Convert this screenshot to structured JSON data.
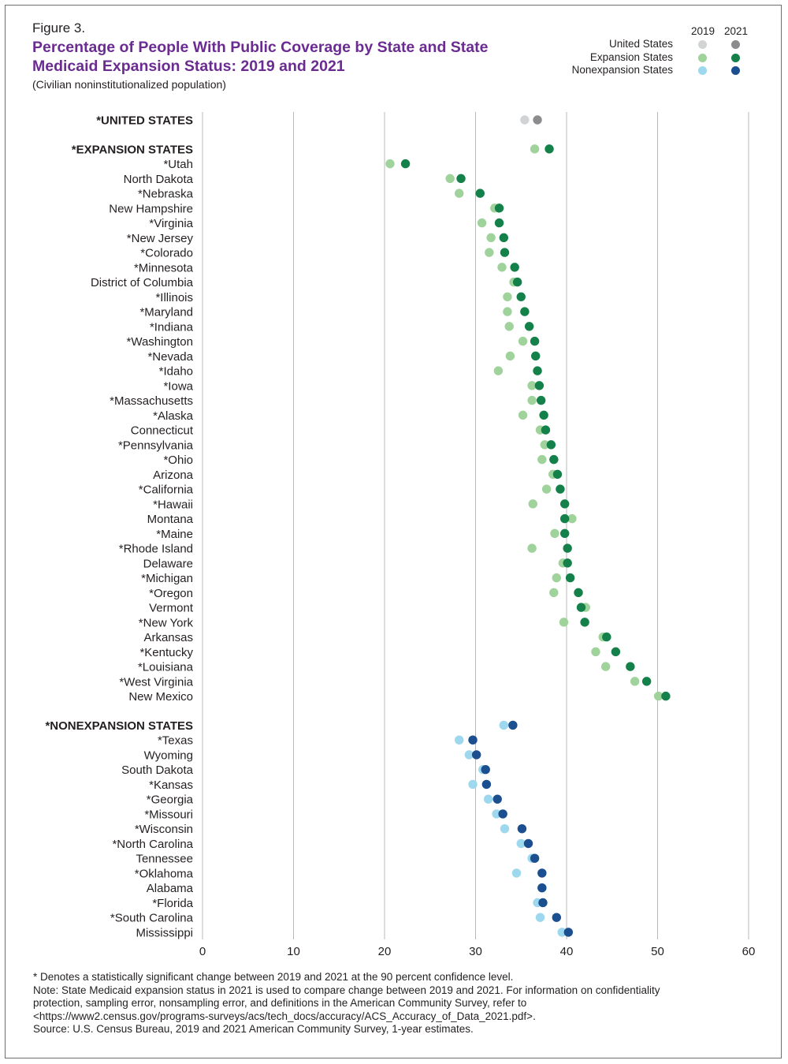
{
  "figure_label": "Figure 3.",
  "title": "Percentage of People With Public Coverage by State and State Medicaid Expansion Status: 2019 and 2021",
  "subtitle": "(Civilian noninstitutionalized population)",
  "legend": {
    "year_a": "2019",
    "year_b": "2021",
    "items": [
      {
        "label": "United States",
        "color_2019": "#d1d3d4",
        "color_2021": "#8c8c8e"
      },
      {
        "label": "Expansion States",
        "color_2019": "#9fd39b",
        "color_2021": "#14804a"
      },
      {
        "label": "Nonexpansion States",
        "color_2019": "#9dd8ee",
        "color_2021": "#1c4f8f"
      }
    ]
  },
  "footnotes": {
    "line1": "* Denotes a statistically significant change between 2019 and 2021 at the 90 percent confidence level.",
    "line2": "Note: State Medicaid expansion status in 2021 is used to compare change between 2019 and 2021. For information on confidentiality protection, sampling error, nonsampling error, and definitions in the American Community Survey, refer to <https://www2.census.gov/programs-surveys/acs/tech_docs/accuracy/ACS_Accuracy_of_Data_2021.pdf>.",
    "line3": "Source: U.S. Census Bureau, 2019 and 2021 American Community Survey, 1-year estimates."
  },
  "chart_data": {
    "type": "scatter",
    "xlim": [
      0,
      60
    ],
    "xticks": [
      0,
      10,
      20,
      30,
      40,
      50,
      60
    ],
    "grid": true,
    "legend_position": "top-right",
    "rows": [
      {
        "label": "*UNITED STATES",
        "group": "us",
        "heading": true,
        "v2019": 35.4,
        "v2021": 36.8
      },
      {
        "gap": true
      },
      {
        "label": "*EXPANSION STATES",
        "group": "exp",
        "heading": true,
        "v2019": 36.5,
        "v2021": 38.1
      },
      {
        "label": "*Utah",
        "group": "exp",
        "v2019": 20.6,
        "v2021": 22.3
      },
      {
        "label": "North Dakota",
        "group": "exp",
        "v2019": 27.2,
        "v2021": 28.4
      },
      {
        "label": "*Nebraska",
        "group": "exp",
        "v2019": 28.2,
        "v2021": 30.5
      },
      {
        "label": "New Hampshire",
        "group": "exp",
        "v2019": 32.1,
        "v2021": 32.6
      },
      {
        "label": "*Virginia",
        "group": "exp",
        "v2019": 30.7,
        "v2021": 32.6
      },
      {
        "label": "*New Jersey",
        "group": "exp",
        "v2019": 31.7,
        "v2021": 33.1
      },
      {
        "label": "*Colorado",
        "group": "exp",
        "v2019": 31.5,
        "v2021": 33.2
      },
      {
        "label": "*Minnesota",
        "group": "exp",
        "v2019": 32.9,
        "v2021": 34.3
      },
      {
        "label": "District of Columbia",
        "group": "exp",
        "v2019": 34.2,
        "v2021": 34.6
      },
      {
        "label": "*Illinois",
        "group": "exp",
        "v2019": 33.5,
        "v2021": 35.0
      },
      {
        "label": "*Maryland",
        "group": "exp",
        "v2019": 33.5,
        "v2021": 35.4
      },
      {
        "label": "*Indiana",
        "group": "exp",
        "v2019": 33.7,
        "v2021": 35.9
      },
      {
        "label": "*Washington",
        "group": "exp",
        "v2019": 35.2,
        "v2021": 36.5
      },
      {
        "label": "*Nevada",
        "group": "exp",
        "v2019": 33.8,
        "v2021": 36.6
      },
      {
        "label": "*Idaho",
        "group": "exp",
        "v2019": 32.5,
        "v2021": 36.8
      },
      {
        "label": "*Iowa",
        "group": "exp",
        "v2019": 36.2,
        "v2021": 37.0
      },
      {
        "label": "*Massachusetts",
        "group": "exp",
        "v2019": 36.2,
        "v2021": 37.2
      },
      {
        "label": "*Alaska",
        "group": "exp",
        "v2019": 35.2,
        "v2021": 37.5
      },
      {
        "label": "Connecticut",
        "group": "exp",
        "v2019": 37.1,
        "v2021": 37.7
      },
      {
        "label": "*Pennsylvania",
        "group": "exp",
        "v2019": 37.6,
        "v2021": 38.3
      },
      {
        "label": "*Ohio",
        "group": "exp",
        "v2019": 37.3,
        "v2021": 38.6
      },
      {
        "label": "Arizona",
        "group": "exp",
        "v2019": 38.5,
        "v2021": 39.0
      },
      {
        "label": "*California",
        "group": "exp",
        "v2019": 37.8,
        "v2021": 39.3
      },
      {
        "label": "*Hawaii",
        "group": "exp",
        "v2019": 36.3,
        "v2021": 39.8
      },
      {
        "label": "Montana",
        "group": "exp",
        "v2019": 40.6,
        "v2021": 39.8
      },
      {
        "label": "*Maine",
        "group": "exp",
        "v2019": 38.7,
        "v2021": 39.8
      },
      {
        "label": "*Rhode Island",
        "group": "exp",
        "v2019": 36.2,
        "v2021": 40.1
      },
      {
        "label": "Delaware",
        "group": "exp",
        "v2019": 39.6,
        "v2021": 40.1
      },
      {
        "label": "*Michigan",
        "group": "exp",
        "v2019": 38.9,
        "v2021": 40.4
      },
      {
        "label": "*Oregon",
        "group": "exp",
        "v2019": 38.6,
        "v2021": 41.3
      },
      {
        "label": "Vermont",
        "group": "exp",
        "v2019": 42.1,
        "v2021": 41.6
      },
      {
        "label": "*New York",
        "group": "exp",
        "v2019": 39.7,
        "v2021": 42.0
      },
      {
        "label": "Arkansas",
        "group": "exp",
        "v2019": 44.0,
        "v2021": 44.4
      },
      {
        "label": "*Kentucky",
        "group": "exp",
        "v2019": 43.2,
        "v2021": 45.4
      },
      {
        "label": "*Louisiana",
        "group": "exp",
        "v2019": 44.3,
        "v2021": 47.0
      },
      {
        "label": "*West Virginia",
        "group": "exp",
        "v2019": 47.5,
        "v2021": 48.8
      },
      {
        "label": "New Mexico",
        "group": "exp",
        "v2019": 50.1,
        "v2021": 50.9
      },
      {
        "gap": true
      },
      {
        "label": "*NONEXPANSION STATES",
        "group": "non",
        "heading": true,
        "v2019": 33.1,
        "v2021": 34.1
      },
      {
        "label": "*Texas",
        "group": "non",
        "v2019": 28.2,
        "v2021": 29.7
      },
      {
        "label": "Wyoming",
        "group": "non",
        "v2019": 29.3,
        "v2021": 30.1
      },
      {
        "label": "South Dakota",
        "group": "non",
        "v2019": 30.8,
        "v2021": 31.1
      },
      {
        "label": "*Kansas",
        "group": "non",
        "v2019": 29.7,
        "v2021": 31.2
      },
      {
        "label": "*Georgia",
        "group": "non",
        "v2019": 31.4,
        "v2021": 32.4
      },
      {
        "label": "*Missouri",
        "group": "non",
        "v2019": 32.3,
        "v2021": 33.0
      },
      {
        "label": "*Wisconsin",
        "group": "non",
        "v2019": 33.2,
        "v2021": 35.1
      },
      {
        "label": "*North Carolina",
        "group": "non",
        "v2019": 35.0,
        "v2021": 35.8
      },
      {
        "label": "Tennessee",
        "group": "non",
        "v2019": 36.2,
        "v2021": 36.5
      },
      {
        "label": "*Oklahoma",
        "group": "non",
        "v2019": 34.5,
        "v2021": 37.3
      },
      {
        "label": "Alabama",
        "group": "non",
        "v2019": 37.3,
        "v2021": 37.3
      },
      {
        "label": "*Florida",
        "group": "non",
        "v2019": 36.8,
        "v2021": 37.4
      },
      {
        "label": "*South Carolina",
        "group": "non",
        "v2019": 37.1,
        "v2021": 38.9
      },
      {
        "label": "Mississippi",
        "group": "non",
        "v2019": 39.5,
        "v2021": 40.2
      }
    ]
  }
}
